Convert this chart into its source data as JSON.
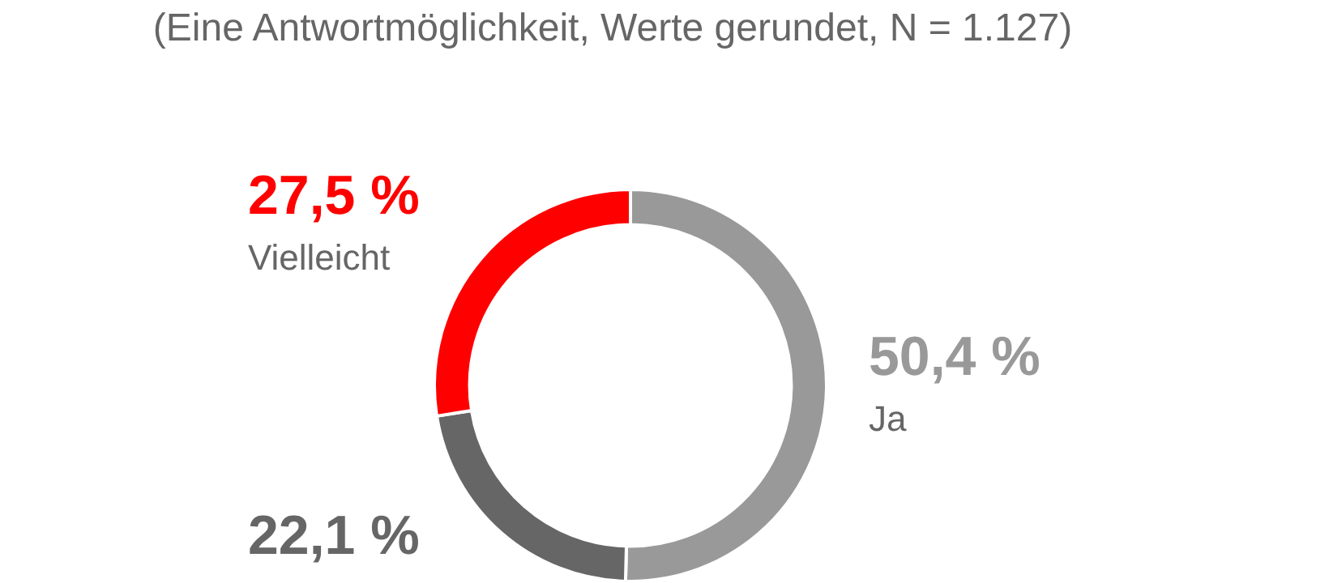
{
  "chart_data": {
    "type": "donut",
    "subtitle": "(Eine Antwortmöglichkeit, Werte gerundet, N = 1.127)",
    "categories": [
      "Ja",
      null,
      "Vielleicht"
    ],
    "values": [
      50.4,
      22.1,
      27.5
    ],
    "value_labels": [
      "50,4 %",
      "22,1 %",
      "27,5 %"
    ],
    "colors": [
      "#999999",
      "#666666",
      "#ff0000"
    ],
    "legend": false
  }
}
